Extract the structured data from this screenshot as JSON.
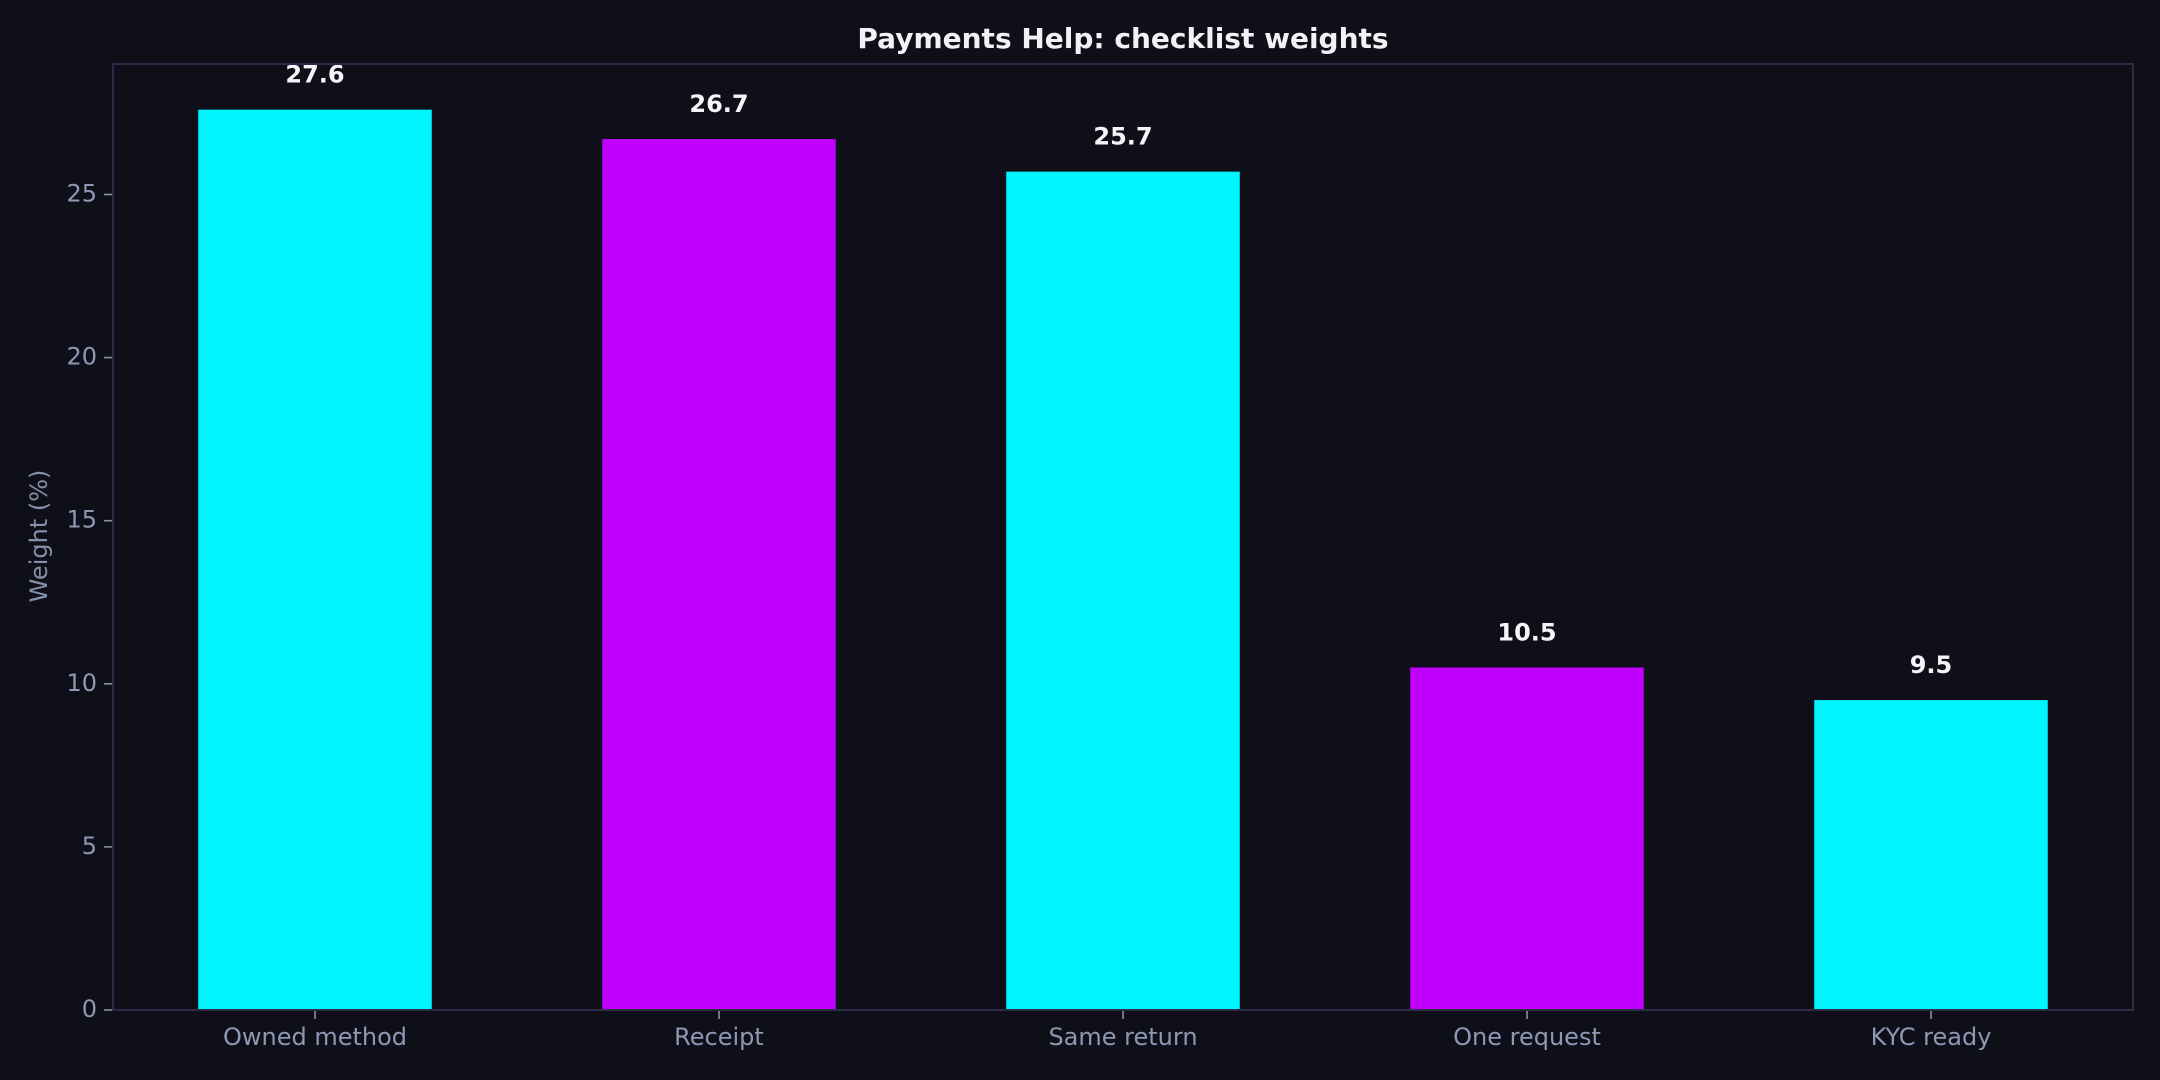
{
  "chart_data": {
    "type": "bar",
    "title": "Payments Help: checklist weights",
    "xlabel": "",
    "ylabel": "Weight (%)",
    "categories": [
      "Owned method",
      "Receipt",
      "Same return",
      "One request",
      "KYC ready"
    ],
    "values": [
      27.6,
      26.7,
      25.7,
      10.5,
      9.5
    ],
    "data_labels": [
      "27.6",
      "26.7",
      "25.7",
      "10.5",
      "9.5"
    ],
    "bar_colors": [
      "#00f5ff",
      "#bf00ff",
      "#00f5ff",
      "#bf00ff",
      "#00f5ff"
    ],
    "ylim": [
      0,
      29
    ],
    "yticks": [
      0,
      5,
      10,
      15,
      20,
      25
    ],
    "grid": false,
    "legend": "none"
  },
  "colors": {
    "background": "#0f0f1a",
    "frame": "#2c2c48",
    "cyan": "#00f5ff",
    "purple": "#bf00ff",
    "text": "#f1f2f6",
    "muted": "#8d98b2"
  }
}
